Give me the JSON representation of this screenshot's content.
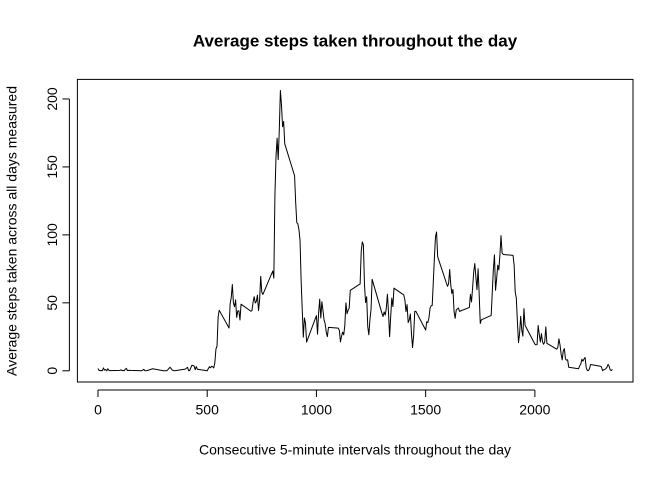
{
  "chart_data": {
    "type": "line",
    "title": "Average steps taken throughout the day",
    "x_label": "Consecutive 5-minute intervals throughout the day",
    "y_label": "Average steps taken across all days measured",
    "color": "#000000",
    "xlim": [
      -94.2,
      2449.2
    ],
    "xticks": [
      0,
      500,
      1000,
      1500,
      2000
    ],
    "ylim": [
      -8.25,
      214.4
    ],
    "yticks": [
      0,
      50,
      100,
      150,
      200
    ],
    "x": [
      0,
      5,
      10,
      15,
      20,
      25,
      30,
      35,
      40,
      45,
      50,
      55,
      100,
      105,
      110,
      115,
      120,
      125,
      130,
      135,
      140,
      145,
      150,
      200,
      210,
      215,
      225,
      250,
      300,
      315,
      330,
      340,
      350,
      400,
      410,
      415,
      420,
      430,
      440,
      445,
      450,
      455,
      500,
      505,
      510,
      515,
      520,
      525,
      530,
      535,
      540,
      545,
      550,
      555,
      600,
      605,
      610,
      615,
      620,
      625,
      630,
      635,
      640,
      645,
      650,
      655,
      700,
      705,
      710,
      715,
      720,
      725,
      730,
      735,
      740,
      745,
      750,
      755,
      800,
      805,
      810,
      815,
      820,
      825,
      830,
      835,
      840,
      845,
      850,
      855,
      900,
      905,
      910,
      915,
      920,
      925,
      930,
      935,
      940,
      945,
      950,
      955,
      1000,
      1005,
      1010,
      1015,
      1020,
      1025,
      1030,
      1035,
      1040,
      1045,
      1050,
      1055,
      1100,
      1105,
      1110,
      1115,
      1120,
      1125,
      1130,
      1135,
      1140,
      1145,
      1150,
      1155,
      1200,
      1205,
      1210,
      1215,
      1220,
      1225,
      1230,
      1235,
      1240,
      1245,
      1250,
      1255,
      1300,
      1305,
      1310,
      1315,
      1320,
      1325,
      1330,
      1335,
      1340,
      1345,
      1350,
      1355,
      1400,
      1405,
      1410,
      1415,
      1420,
      1425,
      1430,
      1435,
      1440,
      1445,
      1450,
      1455,
      1500,
      1505,
      1510,
      1515,
      1520,
      1525,
      1530,
      1535,
      1540,
      1545,
      1550,
      1555,
      1600,
      1605,
      1610,
      1615,
      1620,
      1625,
      1630,
      1635,
      1640,
      1645,
      1650,
      1655,
      1700,
      1705,
      1710,
      1715,
      1720,
      1725,
      1730,
      1735,
      1740,
      1745,
      1750,
      1755,
      1800,
      1805,
      1810,
      1815,
      1820,
      1825,
      1830,
      1835,
      1840,
      1845,
      1850,
      1855,
      1900,
      1905,
      1910,
      1915,
      1920,
      1925,
      1930,
      1935,
      1940,
      1945,
      1950,
      1955,
      2000,
      2005,
      2010,
      2015,
      2020,
      2025,
      2030,
      2035,
      2040,
      2045,
      2050,
      2055,
      2100,
      2105,
      2110,
      2115,
      2120,
      2125,
      2130,
      2135,
      2140,
      2145,
      2150,
      2155,
      2200,
      2205,
      2210,
      2215,
      2220,
      2225,
      2230,
      2235,
      2240,
      2245,
      2250,
      2255,
      2300,
      2305,
      2310,
      2315,
      2320,
      2325,
      2330,
      2335,
      2340,
      2345,
      2350,
      2355
    ],
    "values": [
      1.7,
      0.3,
      0.1,
      0.2,
      0.1,
      2.1,
      0.5,
      0.9,
      0,
      1.5,
      0.3,
      0.1,
      0.3,
      0.7,
      0.2,
      0.3,
      0,
      1.1,
      1.8,
      0.2,
      0.2,
      0.4,
      0.3,
      0,
      1.1,
      0,
      0.1,
      1.5,
      0,
      0,
      2.6,
      0.5,
      0,
      1.2,
      2.6,
      0,
      0.3,
      4.1,
      3.5,
      0.8,
      3.1,
      1.1,
      0,
      1.6,
      3.0,
      2.2,
      3.3,
      3.0,
      2.1,
      6.1,
      16.0,
      18.3,
      39.5,
      44.5,
      31.5,
      49.3,
      53.8,
      63.5,
      50.0,
      47.1,
      52.2,
      39.3,
      44.0,
      44.2,
      37.4,
      49.0,
      43.8,
      44.4,
      50.5,
      54.5,
      49.9,
      51.0,
      55.7,
      44.3,
      52.3,
      69.5,
      57.8,
      56.2,
      73.4,
      68.2,
      129.4,
      157.5,
      171.2,
      155.4,
      177.3,
      206.2,
      195.9,
      179.6,
      183.4,
      167.0,
      143.5,
      124.0,
      109.1,
      108.1,
      103.7,
      95.97,
      66.2,
      45.2,
      24.8,
      38.8,
      34.98,
      21.1,
      40.6,
      26.98,
      42.4,
      52.7,
      38.9,
      50.8,
      44.3,
      37.4,
      34.7,
      28.3,
      25.1,
      31.9,
      31.4,
      29.7,
      21.3,
      25.5,
      28.4,
      26.5,
      33.4,
      49.98,
      42.0,
      44.6,
      46.0,
      59.2,
      63.9,
      87.7,
      94.8,
      92.8,
      63.4,
      50.2,
      54.5,
      32.4,
      26.5,
      37.7,
      45.1,
      67.3,
      42.3,
      39.9,
      43.3,
      40.98,
      46.2,
      56.4,
      42.8,
      25.1,
      39.97,
      53.5,
      47.3,
      60.8,
      55.8,
      51.96,
      43.6,
      48.7,
      35.5,
      37.5,
      41.8,
      27.5,
      17.1,
      26.1,
      43.6,
      43.8,
      30.0,
      36.1,
      35.5,
      38.8,
      45.96,
      47.8,
      48.1,
      65.3,
      82.9,
      98.7,
      102.1,
      83.96,
      62.1,
      64.1,
      74.5,
      63.2,
      56.9,
      59.8,
      43.9,
      38.6,
      44.7,
      45.5,
      46.2,
      43.7,
      46.6,
      56.3,
      50.7,
      61.2,
      72.7,
      78.9,
      68.9,
      59.7,
      75.1,
      56.5,
      34.8,
      37.5,
      40.7,
      58.0,
      74.7,
      85.3,
      59.3,
      67.8,
      77.7,
      74.2,
      85.3,
      99.45,
      86.6,
      85.6,
      84.9,
      77.8,
      58.0,
      53.4,
      36.3,
      20.7,
      27.4,
      40.0,
      30.2,
      25.5,
      45.7,
      33.5,
      19.6,
      19.0,
      19.3,
      33.3,
      26.8,
      21.2,
      27.3,
      21.3,
      19.5,
      21.3,
      32.3,
      20.2,
      15.9,
      17.2,
      23.5,
      19.2,
      12.5,
      8.0,
      14.7,
      16.3,
      8.7,
      7.8,
      8.1,
      2.6,
      1.5,
      3.7,
      4.8,
      8.5,
      7.1,
      8.7,
      9.8,
      2.2,
      0.3,
      0.1,
      1.6,
      4.6,
      3.3,
      2.8,
      0,
      0.8,
      0.96,
      1.6,
      2.6,
      4.7,
      3.3,
      0.6,
      0.2,
      1.1
    ]
  }
}
